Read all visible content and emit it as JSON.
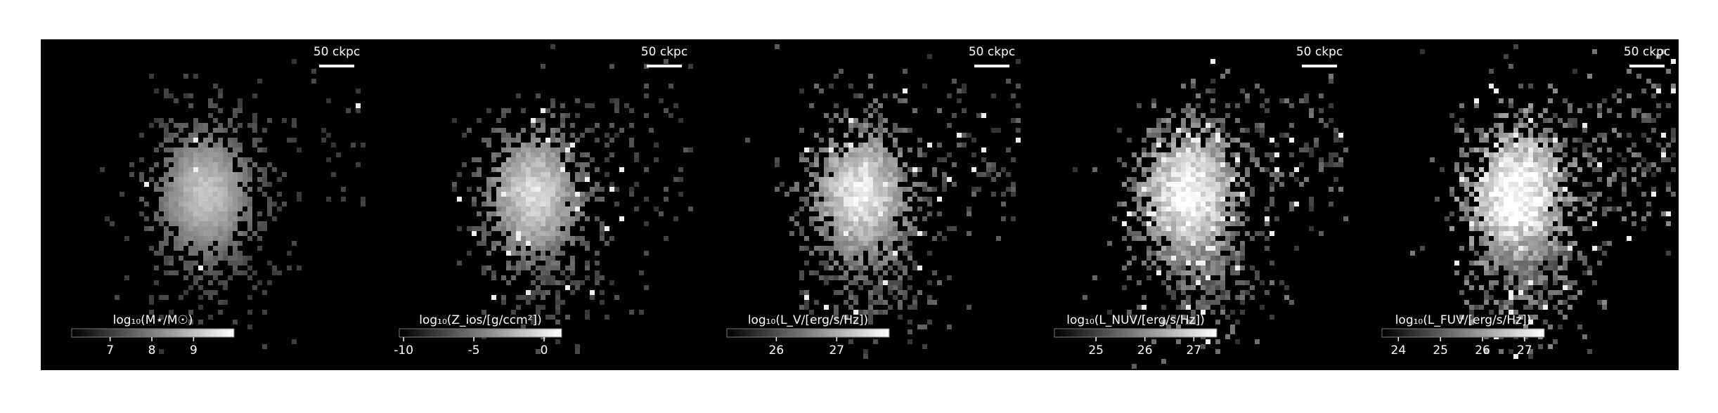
{
  "chart_data": [
    {
      "type": "image",
      "scalebar": "50 ckpc",
      "colorbar": {
        "label": "log₁₀(M⋆/M☉)",
        "lim": [
          6.08,
          9.97
        ],
        "ticks": [
          7,
          8,
          9
        ]
      }
    },
    {
      "type": "image",
      "scalebar": "50 ckpc",
      "colorbar": {
        "label": "log₁₀(Z_ios/[g/ccm²])",
        "lim": [
          -10.31,
          1.25
        ],
        "ticks": [
          -10,
          -5,
          0
        ]
      }
    },
    {
      "type": "image",
      "scalebar": "50 ckpc",
      "colorbar": {
        "label": "log₁₀(L_V/[erg/s/Hz])",
        "lim": [
          25.18,
          27.87
        ],
        "ticks": [
          26,
          27
        ]
      }
    },
    {
      "type": "image",
      "scalebar": "50 ckpc",
      "colorbar": {
        "label": "log₁₀(L_NUV/[erg/s/Hz])",
        "lim": [
          24.15,
          27.47
        ],
        "ticks": [
          25,
          26,
          27
        ]
      }
    },
    {
      "type": "image",
      "scalebar": "50 ckpc",
      "colorbar": {
        "label": "log₁₀(L_FUV/[erg/s/Hz])",
        "lim": [
          23.61,
          27.47
        ],
        "ticks": [
          24,
          25,
          26,
          27
        ]
      }
    }
  ]
}
